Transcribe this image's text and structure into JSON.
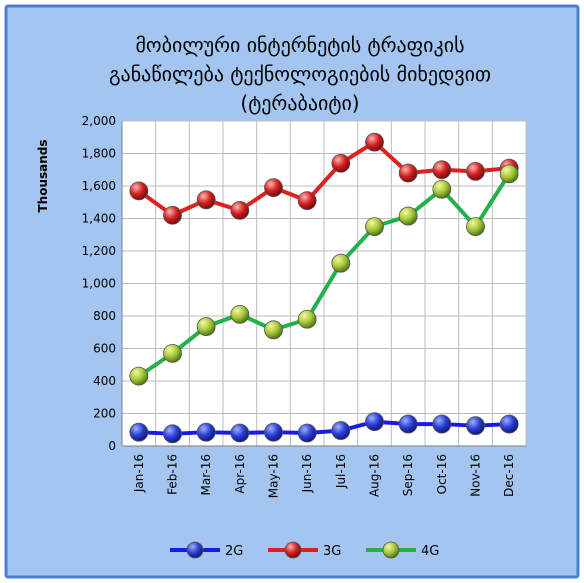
{
  "chart_data": {
    "type": "line",
    "title_lines": [
      "მობილური ინტერნეტის ტრაფიკის",
      "განაწილება ტექნოლოგიების მიხედვით",
      "(ტერაბაიტი)"
    ],
    "ylabel": "Thousands",
    "ylim": [
      0,
      2000
    ],
    "yticks": [
      0,
      200,
      400,
      600,
      800,
      1000,
      1200,
      1400,
      1600,
      1800,
      2000
    ],
    "ytick_labels": [
      "0",
      "200",
      "400",
      "600",
      "800",
      "1,000",
      "1,200",
      "1,400",
      "1,600",
      "1,800",
      "2,000"
    ],
    "categories": [
      "Jan-16",
      "Feb-16",
      "Mar-16",
      "Apr-16",
      "May-16",
      "Jun-16",
      "Jul-16",
      "Aug-16",
      "Sep-16",
      "Oct-16",
      "Nov-16",
      "Dec-16"
    ],
    "grid": true,
    "legend_position": "bottom",
    "series": [
      {
        "name": "2G",
        "color": "#1a1ae6",
        "marker_color": "#2b3fd6",
        "values": [
          85,
          75,
          85,
          80,
          85,
          80,
          95,
          150,
          135,
          135,
          125,
          135
        ]
      },
      {
        "name": "3G",
        "color": "#e02020",
        "marker_color": "#c81e1e",
        "values": [
          1570,
          1420,
          1515,
          1450,
          1590,
          1510,
          1740,
          1870,
          1680,
          1700,
          1690,
          1710
        ]
      },
      {
        "name": "4G",
        "color": "#22b14c",
        "marker_color": "#9ac43a",
        "values": [
          430,
          570,
          735,
          810,
          715,
          780,
          1125,
          1350,
          1415,
          1580,
          1350,
          1675
        ]
      }
    ]
  },
  "colors": {
    "background": "#a3c5ef",
    "border": "#4a7fd0",
    "plot_background": "#ffffff",
    "grid": "#bdbdbd"
  }
}
